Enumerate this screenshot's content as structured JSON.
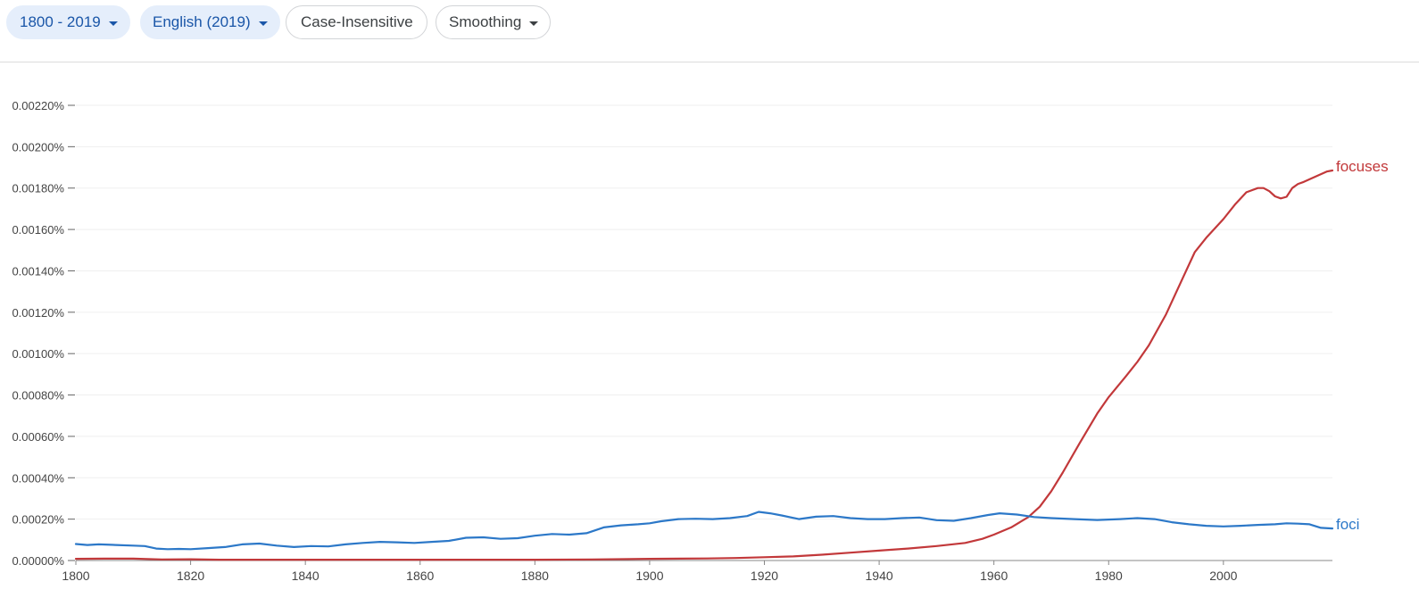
{
  "toolbar": {
    "year_range": "1800 - 2019",
    "corpus": "English (2019)",
    "case": "Case-Insensitive",
    "smoothing": "Smoothing"
  },
  "colors": {
    "focuses": "#c2383a",
    "foci": "#2c78c8",
    "grid": "#efefef",
    "axis_text": "#444444",
    "chip_active_bg": "#e5eefb",
    "chip_active_text": "#1a56a8"
  },
  "icons": {
    "dropdown": "caret-down-icon"
  },
  "chart_data": {
    "type": "line",
    "xlim": [
      1800,
      2019
    ],
    "ylim": [
      0,
      0.0022
    ],
    "x_ticks": [
      1800,
      1820,
      1840,
      1860,
      1880,
      1900,
      1920,
      1940,
      1960,
      1980,
      2000
    ],
    "x_tick_labels": [
      "1800",
      "1820",
      "1840",
      "1860",
      "1880",
      "1900",
      "1920",
      "1940",
      "1960",
      "1980",
      "2000"
    ],
    "y_ticks": [
      0,
      0.0002,
      0.0004,
      0.0006,
      0.0008,
      0.001,
      0.0012,
      0.0014,
      0.0016,
      0.0018,
      0.002,
      0.0022
    ],
    "y_tick_labels": [
      "0.00000%",
      "0.00020%",
      "0.00040%",
      "0.00060%",
      "0.00080%",
      "0.00100%",
      "0.00120%",
      "0.00140%",
      "0.00160%",
      "0.00180%",
      "0.00200%",
      "0.00220%"
    ],
    "grid": true,
    "legend": "line-end labels",
    "series": [
      {
        "name": "focuses",
        "color": "#c2383a",
        "points": [
          [
            1800,
            8e-06
          ],
          [
            1805,
            9e-06
          ],
          [
            1810,
            9e-06
          ],
          [
            1815,
            5e-06
          ],
          [
            1820,
            6e-06
          ],
          [
            1825,
            4e-06
          ],
          [
            1830,
            4e-06
          ],
          [
            1840,
            4e-06
          ],
          [
            1850,
            4e-06
          ],
          [
            1860,
            4e-06
          ],
          [
            1870,
            4e-06
          ],
          [
            1880,
            4e-06
          ],
          [
            1890,
            5e-06
          ],
          [
            1900,
            8e-06
          ],
          [
            1910,
            1e-05
          ],
          [
            1915,
            1.2e-05
          ],
          [
            1920,
            1.6e-05
          ],
          [
            1925,
            2e-05
          ],
          [
            1930,
            2.8e-05
          ],
          [
            1935,
            3.8e-05
          ],
          [
            1940,
            4.8e-05
          ],
          [
            1945,
            5.8e-05
          ],
          [
            1950,
            7e-05
          ],
          [
            1955,
            8.5e-05
          ],
          [
            1958,
            0.000105
          ],
          [
            1960,
            0.000125
          ],
          [
            1963,
            0.00016
          ],
          [
            1966,
            0.00021
          ],
          [
            1968,
            0.00026
          ],
          [
            1970,
            0.000335
          ],
          [
            1972,
            0.000425
          ],
          [
            1975,
            0.00057
          ],
          [
            1978,
            0.00071
          ],
          [
            1980,
            0.00079
          ],
          [
            1983,
            0.00089
          ],
          [
            1985,
            0.00096
          ],
          [
            1987,
            0.00104
          ],
          [
            1990,
            0.00119
          ],
          [
            1993,
            0.00137
          ],
          [
            1995,
            0.00149
          ],
          [
            1997,
            0.00156
          ],
          [
            2000,
            0.00165
          ],
          [
            2002,
            0.00172
          ],
          [
            2004,
            0.00178
          ],
          [
            2006,
            0.0018
          ],
          [
            2007,
            0.0018
          ],
          [
            2008,
            0.001785
          ],
          [
            2009,
            0.00176
          ],
          [
            2010,
            0.00175
          ],
          [
            2011,
            0.001758
          ],
          [
            2012,
            0.0018
          ],
          [
            2013,
            0.00182
          ],
          [
            2014,
            0.00183
          ],
          [
            2016,
            0.001855
          ],
          [
            2018,
            0.00188
          ],
          [
            2019,
            0.001885
          ]
        ]
      },
      {
        "name": "foci",
        "color": "#2c78c8",
        "points": [
          [
            1800,
            8e-05
          ],
          [
            1802,
            7.5e-05
          ],
          [
            1804,
            7.8e-05
          ],
          [
            1807,
            7.5e-05
          ],
          [
            1810,
            7.2e-05
          ],
          [
            1812,
            7e-05
          ],
          [
            1814,
            5.8e-05
          ],
          [
            1816,
            5.5e-05
          ],
          [
            1818,
            5.6e-05
          ],
          [
            1820,
            5.5e-05
          ],
          [
            1823,
            6e-05
          ],
          [
            1826,
            6.5e-05
          ],
          [
            1829,
            7.8e-05
          ],
          [
            1832,
            8.2e-05
          ],
          [
            1835,
            7.2e-05
          ],
          [
            1838,
            6.5e-05
          ],
          [
            1841,
            7e-05
          ],
          [
            1844,
            6.8e-05
          ],
          [
            1847,
            7.8e-05
          ],
          [
            1850,
            8.5e-05
          ],
          [
            1853,
            9e-05
          ],
          [
            1856,
            8.8e-05
          ],
          [
            1859,
            8.5e-05
          ],
          [
            1862,
            9e-05
          ],
          [
            1865,
            9.5e-05
          ],
          [
            1868,
            0.00011
          ],
          [
            1871,
            0.000112
          ],
          [
            1874,
            0.000105
          ],
          [
            1877,
            0.000108
          ],
          [
            1880,
            0.00012
          ],
          [
            1883,
            0.000128
          ],
          [
            1886,
            0.000125
          ],
          [
            1889,
            0.000132
          ],
          [
            1892,
            0.00016
          ],
          [
            1895,
            0.00017
          ],
          [
            1898,
            0.000175
          ],
          [
            1900,
            0.00018
          ],
          [
            1902,
            0.00019
          ],
          [
            1905,
            0.0002
          ],
          [
            1908,
            0.000202
          ],
          [
            1911,
            0.0002
          ],
          [
            1914,
            0.000205
          ],
          [
            1917,
            0.000215
          ],
          [
            1919,
            0.000235
          ],
          [
            1921,
            0.000228
          ],
          [
            1923,
            0.000218
          ],
          [
            1926,
            0.0002
          ],
          [
            1929,
            0.000212
          ],
          [
            1932,
            0.000215
          ],
          [
            1935,
            0.000205
          ],
          [
            1938,
            0.0002
          ],
          [
            1941,
            0.0002
          ],
          [
            1944,
            0.000205
          ],
          [
            1947,
            0.000208
          ],
          [
            1950,
            0.000195
          ],
          [
            1953,
            0.000192
          ],
          [
            1956,
            0.000205
          ],
          [
            1959,
            0.00022
          ],
          [
            1961,
            0.000228
          ],
          [
            1964,
            0.000222
          ],
          [
            1967,
            0.00021
          ],
          [
            1970,
            0.000205
          ],
          [
            1974,
            0.0002
          ],
          [
            1978,
            0.000196
          ],
          [
            1982,
            0.0002
          ],
          [
            1985,
            0.000205
          ],
          [
            1988,
            0.0002
          ],
          [
            1991,
            0.000185
          ],
          [
            1994,
            0.000175
          ],
          [
            1997,
            0.000168
          ],
          [
            2000,
            0.000165
          ],
          [
            2003,
            0.000168
          ],
          [
            2006,
            0.000172
          ],
          [
            2009,
            0.000175
          ],
          [
            2011,
            0.00018
          ],
          [
            2013,
            0.000178
          ],
          [
            2015,
            0.000175
          ],
          [
            2017,
            0.000158
          ],
          [
            2019,
            0.000155
          ]
        ]
      }
    ]
  }
}
